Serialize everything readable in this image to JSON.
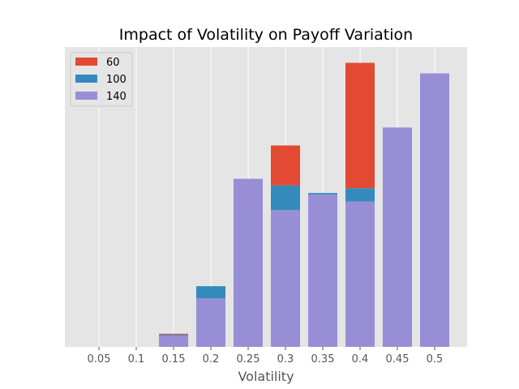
{
  "chart_data": {
    "type": "bar",
    "stacked": true,
    "title": "Impact of Volatility on Payoff Variation",
    "xlabel": "Volatility",
    "ylabel": "",
    "categories": [
      "0.05",
      "0.1",
      "0.15",
      "0.2",
      "0.25",
      "0.3",
      "0.35",
      "0.4",
      "0.45",
      "0.5"
    ],
    "y_axis_ticks_visible": false,
    "ylim": [
      0,
      1.0
    ],
    "grid": true,
    "legend_position": "top-left",
    "series": [
      {
        "name": "140",
        "color": "#988ED5",
        "values": [
          0,
          0,
          0.04,
          0.17,
          0.59,
          0.48,
          0.535,
          0.51,
          0.77,
          0.96
        ]
      },
      {
        "name": "100",
        "color": "#348ABD",
        "values": [
          0,
          0,
          0.003,
          0.043,
          0,
          0.087,
          0.005,
          0.047,
          0,
          0
        ]
      },
      {
        "name": "60",
        "color": "#E24A33",
        "values": [
          0,
          0,
          0.003,
          0,
          0,
          0.14,
          0,
          0.44,
          0,
          0
        ]
      }
    ],
    "legend_order": [
      "60",
      "100",
      "140"
    ],
    "colors": {
      "plot_background": "#E5E5E5",
      "grid": "#FFFFFF",
      "legend_background": "#E5E5E5",
      "legend_border": "#CCCCCC"
    }
  }
}
